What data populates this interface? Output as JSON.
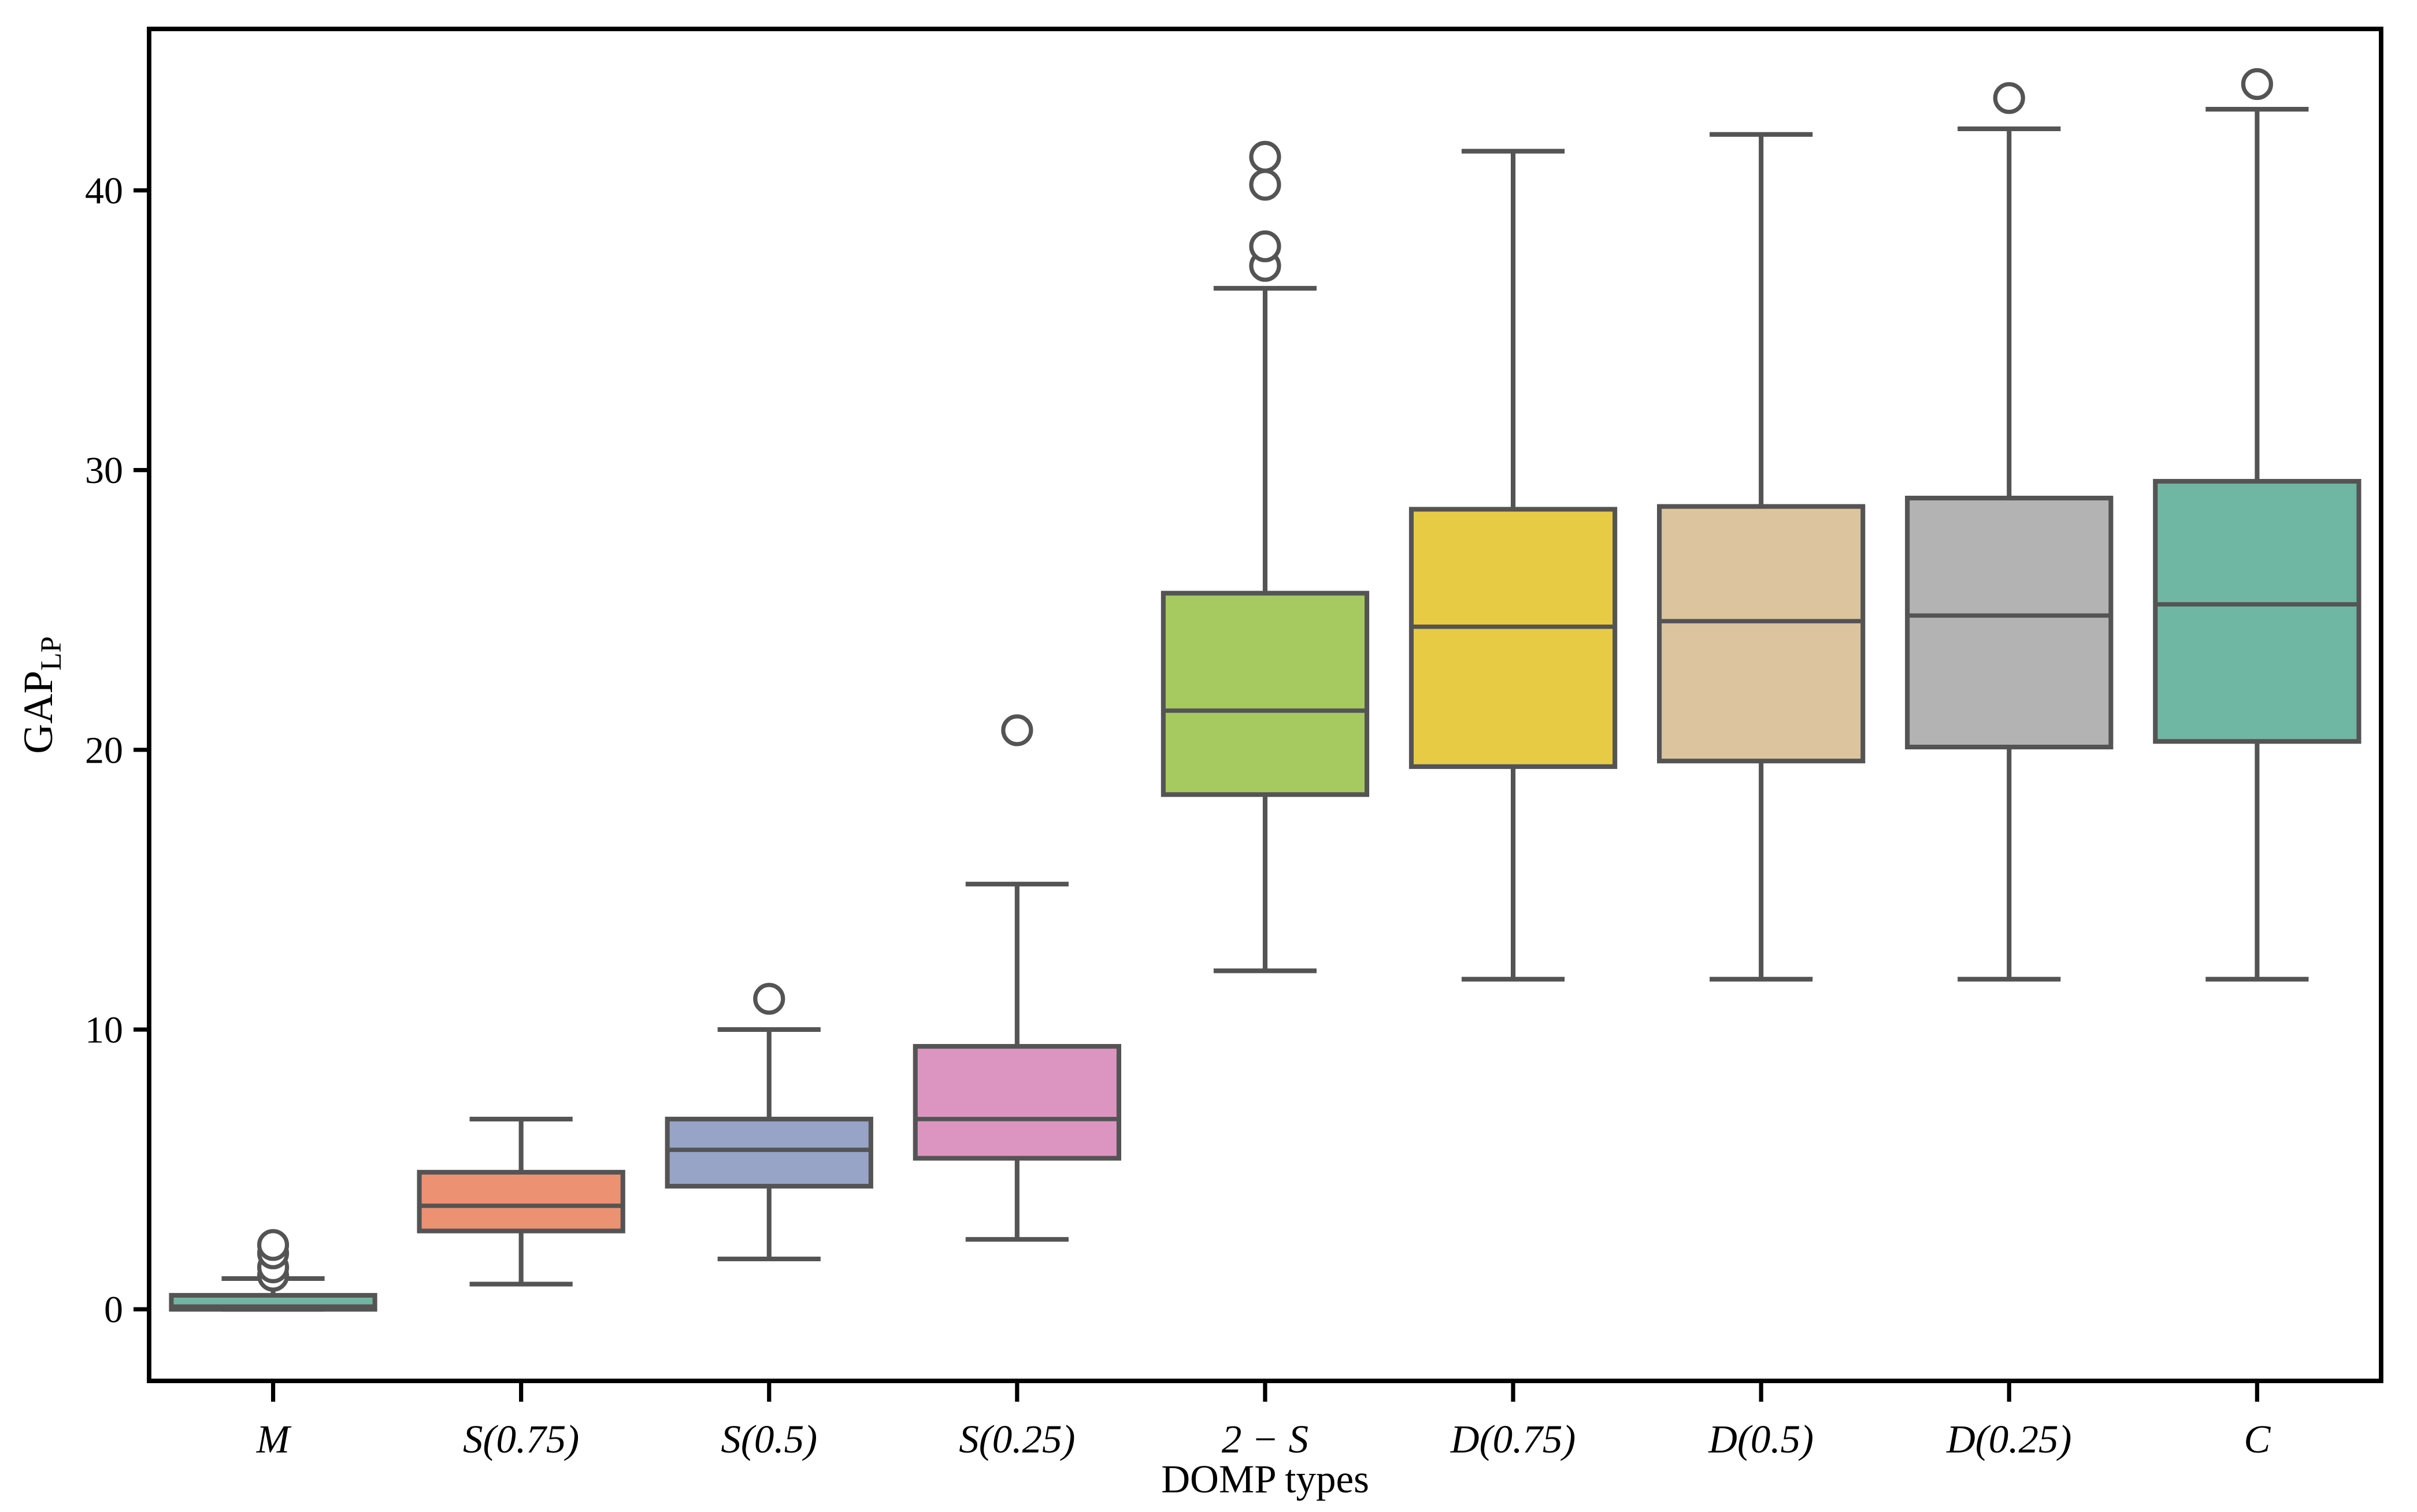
{
  "figure": {
    "background": "#ffffff",
    "axis_color": "#000000",
    "element_color": "#545454",
    "flier_fill": "#ffffff",
    "xlabel": "DOMP types",
    "ylabel": {
      "main": "GAP",
      "sub": "LP"
    }
  },
  "chart_data": {
    "type": "boxplot",
    "title": "",
    "xlabel": "DOMP types",
    "ylabel": "GAP_LP",
    "grid": false,
    "legend_position": "none",
    "ylim": [
      -2.56,
      45.77
    ],
    "yticks": [
      0,
      10,
      20,
      30,
      40
    ],
    "categories": [
      "M",
      "S(0.75)",
      "S(0.5)",
      "S(0.25)",
      "2 − S",
      "D(0.75)",
      "D(0.5)",
      "D(0.25)",
      "C"
    ],
    "series": [
      {
        "name": "M",
        "color": "#6fb7a2",
        "whislo": 0.0,
        "q1": 0.0,
        "med": 0.1,
        "q3": 0.5,
        "whishi": 1.1,
        "fliers": [
          1.2,
          1.5,
          2.0,
          2.3
        ]
      },
      {
        "name": "S(0.75)",
        "color": "#ec9172",
        "whislo": 0.9,
        "q1": 2.8,
        "med": 3.7,
        "q3": 4.9,
        "whishi": 6.8,
        "fliers": []
      },
      {
        "name": "S(0.5)",
        "color": "#97a4c7",
        "whislo": 1.8,
        "q1": 4.4,
        "med": 5.7,
        "q3": 6.8,
        "whishi": 10.0,
        "fliers": [
          11.1
        ]
      },
      {
        "name": "S(0.25)",
        "color": "#dc95c0",
        "whislo": 2.5,
        "q1": 5.4,
        "med": 6.8,
        "q3": 9.4,
        "whishi": 15.2,
        "fliers": [
          20.7
        ]
      },
      {
        "name": "2 − S",
        "color": "#a6c960",
        "whislo": 12.1,
        "q1": 18.4,
        "med": 21.4,
        "q3": 25.6,
        "whishi": 36.5,
        "fliers": [
          37.3,
          38.0,
          40.2,
          41.2
        ]
      },
      {
        "name": "D(0.75)",
        "color": "#e8cb45",
        "whislo": 11.8,
        "q1": 19.4,
        "med": 24.4,
        "q3": 28.6,
        "whishi": 41.4,
        "fliers": []
      },
      {
        "name": "D(0.5)",
        "color": "#dcc49e",
        "whislo": 11.8,
        "q1": 19.6,
        "med": 24.6,
        "q3": 28.7,
        "whishi": 42.0,
        "fliers": []
      },
      {
        "name": "D(0.25)",
        "color": "#b3b3b3",
        "whislo": 11.8,
        "q1": 20.1,
        "med": 24.8,
        "q3": 29.0,
        "whishi": 42.2,
        "fliers": [
          43.3
        ]
      },
      {
        "name": "C",
        "color": "#6fb7a2",
        "whislo": 11.8,
        "q1": 20.3,
        "med": 25.2,
        "q3": 29.6,
        "whishi": 42.9,
        "fliers": [
          43.8
        ]
      }
    ]
  }
}
